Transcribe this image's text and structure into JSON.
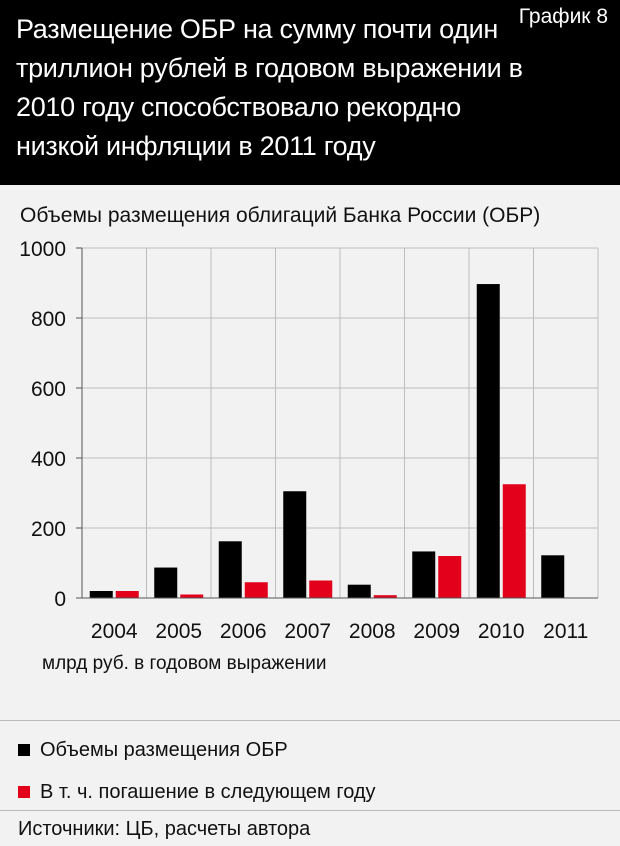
{
  "header": {
    "title": "Размещение ОБР на сумму почти один триллион рублей в годовом выражении в 2010 году способствовало рекордно низкой инфляции в 2011 году",
    "badge": "График 8"
  },
  "unit_label": "млрд руб. в годовом выражении",
  "source": "Источники: ЦБ, расчеты автора",
  "colors": {
    "series1": "#000000",
    "series2": "#e2001a"
  },
  "chart_data": {
    "type": "bar",
    "title": "Объемы размещения облигаций Банка России (ОБР)",
    "categories": [
      "2004",
      "2005",
      "2006",
      "2007",
      "2008",
      "2009",
      "2010",
      "2011"
    ],
    "series": [
      {
        "name": "Объемы размещения ОБР",
        "values": [
          20,
          87,
          162,
          305,
          38,
          133,
          897,
          122
        ]
      },
      {
        "name": "В т. ч. погашение в следующем  году",
        "values": [
          20,
          10,
          45,
          50,
          8,
          120,
          325,
          0
        ]
      }
    ],
    "ylim": [
      0,
      1000
    ],
    "yticks": [
      0,
      200,
      400,
      600,
      800,
      1000
    ],
    "grid": true,
    "legend": "bottom"
  }
}
